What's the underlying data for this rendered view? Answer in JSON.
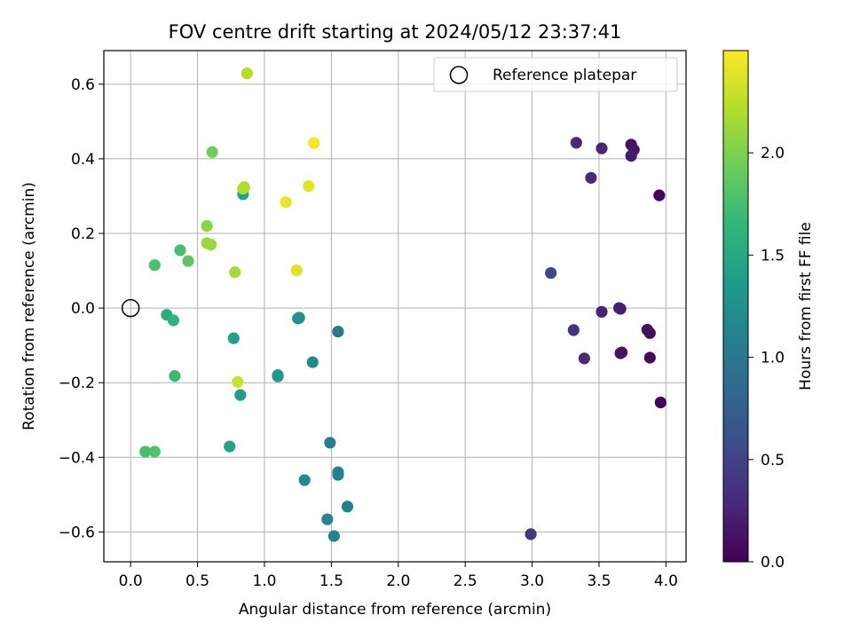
{
  "chart_data": {
    "type": "scatter",
    "title": "FOV centre drift starting at 2024/05/12 23:37:41",
    "xlabel": "Angular distance from reference (arcmin)",
    "ylabel": "Rotation from reference (arcmin)",
    "xlim": [
      -0.2,
      4.15
    ],
    "ylim": [
      -0.68,
      0.69
    ],
    "xticks": [
      0.0,
      0.5,
      1.0,
      1.5,
      2.0,
      2.5,
      3.0,
      3.5,
      4.0
    ],
    "xtick_labels": [
      "0.0",
      "0.5",
      "1.0",
      "1.5",
      "2.0",
      "2.5",
      "3.0",
      "3.5",
      "4.0"
    ],
    "yticks": [
      -0.6,
      -0.4,
      -0.2,
      0.0,
      0.2,
      0.4,
      0.6
    ],
    "ytick_labels": [
      "−0.6",
      "−0.4",
      "−0.2",
      "0.0",
      "0.2",
      "0.4",
      "0.6"
    ],
    "grid": true,
    "legend": {
      "placement": "top-right",
      "entries": [
        "Reference platepar"
      ]
    },
    "reference_point": {
      "x": 0.0,
      "y": 0.0,
      "marker": "open-circle"
    },
    "colormap": "viridis",
    "colorbar": {
      "label": "Hours from first FF file",
      "range": [
        0.0,
        2.5
      ],
      "ticks": [
        0.0,
        0.5,
        1.0,
        1.5,
        2.0
      ],
      "tick_labels": [
        "0.0",
        "0.5",
        "1.0",
        "1.5",
        "2.0"
      ]
    },
    "points": [
      {
        "x": 3.95,
        "y": 0.302,
        "c": 0.02
      },
      {
        "x": 3.96,
        "y": -0.253,
        "c": 0.02
      },
      {
        "x": 3.88,
        "y": -0.133,
        "c": 0.05
      },
      {
        "x": 3.88,
        "y": -0.067,
        "c": 0.08
      },
      {
        "x": 3.86,
        "y": -0.058,
        "c": 0.1
      },
      {
        "x": 3.67,
        "y": -0.119,
        "c": 0.12
      },
      {
        "x": 3.66,
        "y": -0.121,
        "c": 0.13
      },
      {
        "x": 3.74,
        "y": 0.438,
        "c": 0.12
      },
      {
        "x": 3.76,
        "y": 0.424,
        "c": 0.15
      },
      {
        "x": 3.74,
        "y": 0.408,
        "c": 0.17
      },
      {
        "x": 3.66,
        "y": -0.002,
        "c": 0.2
      },
      {
        "x": 3.65,
        "y": 0.0,
        "c": 0.22
      },
      {
        "x": 3.52,
        "y": -0.01,
        "c": 0.25
      },
      {
        "x": 3.52,
        "y": 0.428,
        "c": 0.27
      },
      {
        "x": 3.44,
        "y": 0.349,
        "c": 0.3
      },
      {
        "x": 3.39,
        "y": -0.135,
        "c": 0.32
      },
      {
        "x": 3.31,
        "y": -0.059,
        "c": 0.35
      },
      {
        "x": 3.33,
        "y": 0.443,
        "c": 0.32
      },
      {
        "x": 2.99,
        "y": -0.606,
        "c": 0.4
      },
      {
        "x": 3.14,
        "y": 0.094,
        "c": 0.55
      },
      {
        "x": 1.55,
        "y": -0.063,
        "c": 1.0
      },
      {
        "x": 1.49,
        "y": -0.361,
        "c": 1.05
      },
      {
        "x": 1.55,
        "y": -0.44,
        "c": 1.08
      },
      {
        "x": 1.55,
        "y": -0.447,
        "c": 1.1
      },
      {
        "x": 1.62,
        "y": -0.532,
        "c": 1.1
      },
      {
        "x": 1.47,
        "y": -0.566,
        "c": 1.13
      },
      {
        "x": 1.52,
        "y": -0.611,
        "c": 1.12
      },
      {
        "x": 1.3,
        "y": -0.461,
        "c": 1.18
      },
      {
        "x": 1.36,
        "y": -0.145,
        "c": 1.18
      },
      {
        "x": 1.26,
        "y": -0.026,
        "c": 1.22
      },
      {
        "x": 1.25,
        "y": -0.028,
        "c": 1.25
      },
      {
        "x": 1.1,
        "y": -0.183,
        "c": 1.28
      },
      {
        "x": 1.1,
        "y": -0.18,
        "c": 1.32
      },
      {
        "x": 0.82,
        "y": -0.233,
        "c": 1.38
      },
      {
        "x": 0.77,
        "y": -0.081,
        "c": 1.42
      },
      {
        "x": 0.74,
        "y": -0.371,
        "c": 1.45
      },
      {
        "x": 0.84,
        "y": 0.305,
        "c": 1.45
      },
      {
        "x": 0.27,
        "y": -0.018,
        "c": 1.55
      },
      {
        "x": 0.32,
        "y": -0.033,
        "c": 1.62
      },
      {
        "x": 0.33,
        "y": -0.182,
        "c": 1.7
      },
      {
        "x": 0.11,
        "y": -0.385,
        "c": 1.75
      },
      {
        "x": 0.18,
        "y": -0.385,
        "c": 1.8
      },
      {
        "x": 0.37,
        "y": 0.155,
        "c": 1.75
      },
      {
        "x": 0.18,
        "y": 0.115,
        "c": 1.78
      },
      {
        "x": 0.43,
        "y": 0.126,
        "c": 1.85
      },
      {
        "x": 0.61,
        "y": 0.418,
        "c": 1.95
      },
      {
        "x": 0.57,
        "y": 0.22,
        "c": 2.05
      },
      {
        "x": 0.6,
        "y": 0.17,
        "c": 2.1
      },
      {
        "x": 0.57,
        "y": 0.174,
        "c": 2.12
      },
      {
        "x": 0.78,
        "y": 0.096,
        "c": 2.15
      },
      {
        "x": 0.85,
        "y": 0.324,
        "c": 2.18
      },
      {
        "x": 0.84,
        "y": 0.32,
        "c": 2.2
      },
      {
        "x": 0.87,
        "y": 0.629,
        "c": 2.22
      },
      {
        "x": 0.8,
        "y": -0.198,
        "c": 2.3
      },
      {
        "x": 1.24,
        "y": 0.101,
        "c": 2.38
      },
      {
        "x": 1.33,
        "y": 0.327,
        "c": 2.4
      },
      {
        "x": 1.16,
        "y": 0.284,
        "c": 2.42
      },
      {
        "x": 1.37,
        "y": 0.442,
        "c": 2.48
      }
    ]
  }
}
